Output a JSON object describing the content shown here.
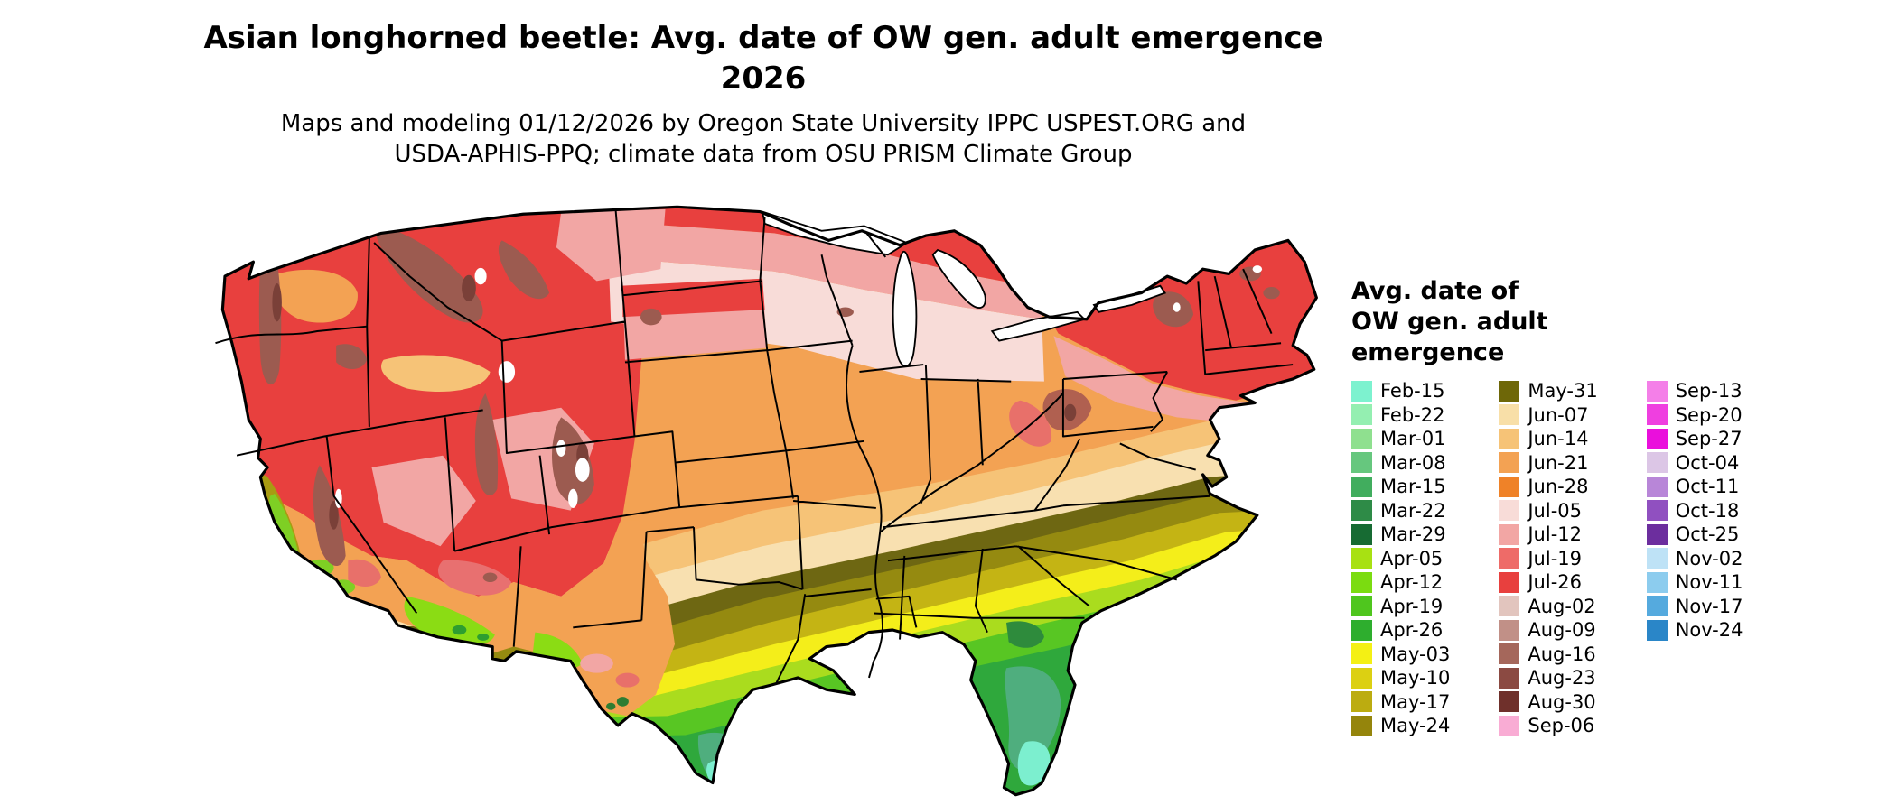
{
  "title": {
    "line1": "Asian longhorned beetle: Avg. date of OW gen. adult emergence",
    "line2": "2026"
  },
  "subtitle": {
    "line1": "Maps and modeling 01/12/2026 by Oregon State University IPPC USPEST.ORG and",
    "line2": "USDA-APHIS-PPQ; climate data from OSU PRISM Climate Group"
  },
  "legend": {
    "title": "Avg. date of\nOW gen. adult\nemergence",
    "columns": [
      [
        {
          "label": "Feb-15",
          "color": "#7DF2CF"
        },
        {
          "label": "Feb-22",
          "color": "#94EFB1"
        },
        {
          "label": "Mar-01",
          "color": "#8FE08F"
        },
        {
          "label": "Mar-08",
          "color": "#66C77E"
        },
        {
          "label": "Mar-15",
          "color": "#41AD5E"
        },
        {
          "label": "Mar-22",
          "color": "#2E8B47"
        },
        {
          "label": "Mar-29",
          "color": "#176B33"
        },
        {
          "label": "Apr-05",
          "color": "#A8E112"
        },
        {
          "label": "Apr-12",
          "color": "#7BDC10"
        },
        {
          "label": "Apr-19",
          "color": "#4FC61E"
        },
        {
          "label": "Apr-26",
          "color": "#2EAE2E"
        },
        {
          "label": "May-03",
          "color": "#F4F014"
        },
        {
          "label": "May-10",
          "color": "#DCD012"
        },
        {
          "label": "May-17",
          "color": "#BCAC10"
        },
        {
          "label": "May-24",
          "color": "#95850C"
        }
      ],
      [
        {
          "label": "May-31",
          "color": "#6E6708"
        },
        {
          "label": "Jun-07",
          "color": "#F8DFA8"
        },
        {
          "label": "Jun-14",
          "color": "#F6C377"
        },
        {
          "label": "Jun-21",
          "color": "#F3A253"
        },
        {
          "label": "Jun-28",
          "color": "#EF8228"
        },
        {
          "label": "Jul-05",
          "color": "#F8DCD8"
        },
        {
          "label": "Jul-12",
          "color": "#F2A6A4"
        },
        {
          "label": "Jul-19",
          "color": "#EE6B68"
        },
        {
          "label": "Jul-26",
          "color": "#E8403E"
        },
        {
          "label": "Aug-02",
          "color": "#E2C5BE"
        },
        {
          "label": "Aug-09",
          "color": "#C19087"
        },
        {
          "label": "Aug-16",
          "color": "#A5675B"
        },
        {
          "label": "Aug-23",
          "color": "#8B4A42"
        },
        {
          "label": "Aug-30",
          "color": "#6F302B"
        },
        {
          "label": "Sep-06",
          "color": "#F9ACD4"
        }
      ],
      [
        {
          "label": "Sep-13",
          "color": "#F47FE8"
        },
        {
          "label": "Sep-20",
          "color": "#EF3FE0"
        },
        {
          "label": "Sep-27",
          "color": "#EA0FDC"
        },
        {
          "label": "Oct-04",
          "color": "#DCC6E6"
        },
        {
          "label": "Oct-11",
          "color": "#B886D8"
        },
        {
          "label": "Oct-18",
          "color": "#9050C0"
        },
        {
          "label": "Oct-25",
          "color": "#6C2E9E"
        },
        {
          "label": "Nov-02",
          "color": "#BEE2F6"
        },
        {
          "label": "Nov-11",
          "color": "#8CCCEE"
        },
        {
          "label": "Nov-17",
          "color": "#55AADE"
        },
        {
          "label": "Nov-24",
          "color": "#2A86C8"
        }
      ]
    ]
  }
}
